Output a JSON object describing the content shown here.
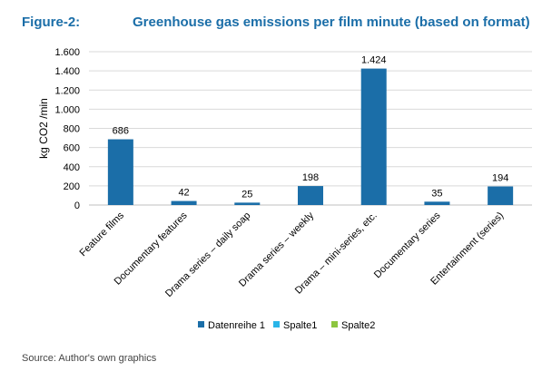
{
  "figure_label": "Figure-2:",
  "title": "Greenhouse gas emissions per film minute (based on format)",
  "source": "Source: Author's own graphics",
  "colors": {
    "title": "#1b6ea8",
    "Datenreihe 1": "#1b6ea8",
    "Spalte1": "#29b5e8",
    "Spalte2": "#8dc63f"
  },
  "chart_data": {
    "type": "bar",
    "title": "Greenhouse gas emissions per film minute (based on format)",
    "ylabel": "kg CO2 /min",
    "xlabel": "",
    "ylim": [
      0,
      1600
    ],
    "y_ticks": [
      0,
      200,
      400,
      600,
      800,
      1000,
      1200,
      1400,
      1600
    ],
    "y_tick_labels": [
      "0",
      "200",
      "400",
      "600",
      "800",
      "1.000",
      "1.200",
      "1.400",
      "1.600"
    ],
    "grid": true,
    "categories": [
      "Feature films",
      "Documentary features",
      "Drama series – daily soap",
      "Drama series – weekly",
      "Drama – mini-series, etc.",
      "Documentary series",
      "Entertainment (series)"
    ],
    "series": [
      {
        "name": "Datenreihe 1",
        "values": [
          686,
          42,
          25,
          198,
          1424,
          35,
          194
        ],
        "data_labels": [
          "686",
          "42",
          "25",
          "198",
          "1.424",
          "35",
          "194"
        ]
      }
    ],
    "legend": {
      "position": "bottom",
      "entries": [
        "Datenreihe 1",
        "Spalte1",
        "Spalte2"
      ]
    }
  }
}
